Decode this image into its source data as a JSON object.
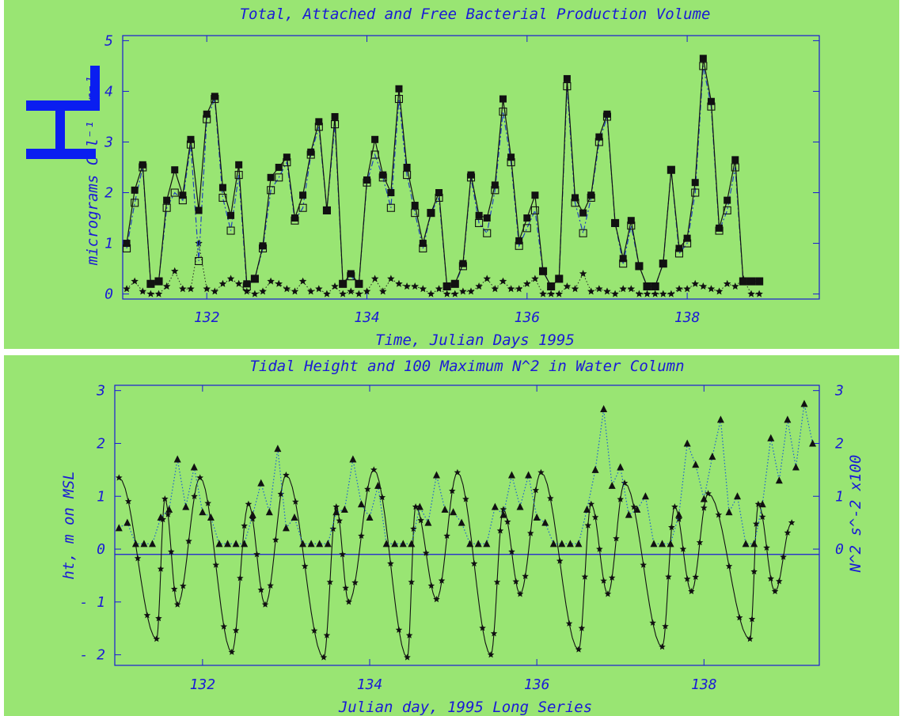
{
  "chart_data": [
    {
      "type": "line",
      "title": "Total, Attached and Free Bacterial Production Volume",
      "xlabel": "Time, Julian Days 1995",
      "ylabel": "micrograms C l⁻¹ hr⁻¹",
      "xlim": [
        130.95,
        139.65
      ],
      "ylim": [
        -0.1,
        5.1
      ],
      "xticks": [
        132,
        134,
        136,
        138
      ],
      "yticks": [
        0,
        1,
        2,
        3,
        4,
        5
      ],
      "grid": false,
      "series": [
        {
          "style": "filled-square-solid",
          "x": [
            131.0,
            131.1,
            131.2,
            131.3,
            131.4,
            131.5,
            131.6,
            131.7,
            131.8,
            131.9,
            132.0,
            132.1,
            132.2,
            132.3,
            132.4,
            132.5,
            132.6,
            132.7,
            132.8,
            132.9,
            133.0,
            133.1,
            133.2,
            133.3,
            133.4,
            133.5,
            133.6,
            133.7,
            133.8,
            133.9,
            134.0,
            134.1,
            134.2,
            134.3,
            134.4,
            134.5,
            134.6,
            134.7,
            134.8,
            134.9,
            135.0,
            135.1,
            135.2,
            135.3,
            135.4,
            135.5,
            135.6,
            135.7,
            135.8,
            135.9,
            136.0,
            136.1,
            136.2,
            136.3,
            136.4,
            136.5,
            136.6,
            136.7,
            136.8,
            136.9,
            137.0,
            137.1,
            137.2,
            137.3,
            137.4,
            137.5,
            137.6,
            137.7,
            137.8,
            137.9,
            138.0,
            138.1,
            138.2,
            138.3,
            138.4,
            138.5,
            138.6,
            138.7,
            138.8,
            138.9
          ],
          "y": [
            1.0,
            2.05,
            2.55,
            0.2,
            0.25,
            1.85,
            2.45,
            1.95,
            3.05,
            1.65,
            3.55,
            3.9,
            2.1,
            1.55,
            2.55,
            0.2,
            0.3,
            0.95,
            2.3,
            2.5,
            2.7,
            1.5,
            1.95,
            2.8,
            3.4,
            1.65,
            3.5,
            0.2,
            0.4,
            0.2,
            2.25,
            3.05,
            2.35,
            2.0,
            4.05,
            2.5,
            1.75,
            1.0,
            1.6,
            2.0,
            0.15,
            0.2,
            0.6,
            2.35,
            1.55,
            1.5,
            2.15,
            3.85,
            2.7,
            1.05,
            1.5,
            1.95,
            0.45,
            0.15,
            0.3,
            4.25,
            1.9,
            1.6,
            1.95,
            3.1,
            3.55,
            1.4,
            0.7,
            1.45,
            0.55,
            0.15,
            0.15,
            0.6,
            2.45,
            0.9,
            1.1,
            2.2,
            4.65,
            3.8,
            1.3,
            1.85,
            2.65,
            0.25,
            0.25,
            0.25
          ]
        },
        {
          "style": "open-square-dashdot",
          "x": [
            131.0,
            131.1,
            131.2,
            131.3,
            131.4,
            131.5,
            131.6,
            131.7,
            131.8,
            131.9,
            132.0,
            132.1,
            132.2,
            132.3,
            132.4,
            132.5,
            132.6,
            132.7,
            132.8,
            132.9,
            133.0,
            133.1,
            133.2,
            133.3,
            133.4,
            133.5,
            133.6,
            133.7,
            133.8,
            133.9,
            134.0,
            134.1,
            134.2,
            134.3,
            134.4,
            134.5,
            134.6,
            134.7,
            134.8,
            134.9,
            135.0,
            135.1,
            135.2,
            135.3,
            135.4,
            135.5,
            135.6,
            135.7,
            135.8,
            135.9,
            136.0,
            136.1,
            136.2,
            136.3,
            136.4,
            136.5,
            136.6,
            136.7,
            136.8,
            136.9,
            137.0,
            137.1,
            137.2,
            137.3,
            137.4,
            137.5,
            137.6,
            137.7,
            137.8,
            137.9,
            138.0,
            138.1,
            138.2,
            138.3,
            138.4,
            138.5,
            138.6,
            138.7,
            138.8,
            138.9
          ],
          "y": [
            0.9,
            1.8,
            2.5,
            0.2,
            0.25,
            1.7,
            2.0,
            1.85,
            2.95,
            0.65,
            3.45,
            3.85,
            1.9,
            1.25,
            2.35,
            0.15,
            0.3,
            0.9,
            2.05,
            2.3,
            2.6,
            1.45,
            1.7,
            2.75,
            3.3,
            1.65,
            3.35,
            0.2,
            0.35,
            0.2,
            2.2,
            2.75,
            2.3,
            1.7,
            3.85,
            2.35,
            1.6,
            0.9,
            1.6,
            1.9,
            0.15,
            0.2,
            0.55,
            2.3,
            1.4,
            1.2,
            2.05,
            3.6,
            2.6,
            0.95,
            1.3,
            1.65,
            0.45,
            0.15,
            0.3,
            4.1,
            1.8,
            1.2,
            1.9,
            3.0,
            3.5,
            1.4,
            0.6,
            1.35,
            0.55,
            0.15,
            0.15,
            0.6,
            2.45,
            0.8,
            1.0,
            2.0,
            4.5,
            3.7,
            1.25,
            1.65,
            2.5,
            0.25,
            0.25,
            0.25
          ]
        },
        {
          "style": "star-dotted",
          "x": [
            131.0,
            131.1,
            131.2,
            131.3,
            131.4,
            131.5,
            131.6,
            131.7,
            131.8,
            131.9,
            132.0,
            132.1,
            132.2,
            132.3,
            132.4,
            132.5,
            132.6,
            132.7,
            132.8,
            132.9,
            133.0,
            133.1,
            133.2,
            133.3,
            133.4,
            133.5,
            133.6,
            133.7,
            133.8,
            133.9,
            134.0,
            134.1,
            134.2,
            134.3,
            134.4,
            134.5,
            134.6,
            134.7,
            134.8,
            134.9,
            135.0,
            135.1,
            135.2,
            135.3,
            135.4,
            135.5,
            135.6,
            135.7,
            135.8,
            135.9,
            136.0,
            136.1,
            136.2,
            136.3,
            136.4,
            136.5,
            136.6,
            136.7,
            136.8,
            136.9,
            137.0,
            137.1,
            137.2,
            137.3,
            137.4,
            137.5,
            137.6,
            137.7,
            137.8,
            137.9,
            138.0,
            138.1,
            138.2,
            138.3,
            138.4,
            138.5,
            138.6,
            138.7,
            138.8,
            138.9
          ],
          "y": [
            0.1,
            0.25,
            0.05,
            0.0,
            0.0,
            0.15,
            0.45,
            0.1,
            0.1,
            1.0,
            0.1,
            0.05,
            0.2,
            0.3,
            0.2,
            0.05,
            0.0,
            0.05,
            0.25,
            0.2,
            0.1,
            0.05,
            0.25,
            0.05,
            0.1,
            0.0,
            0.15,
            0.0,
            0.05,
            0.0,
            0.05,
            0.3,
            0.05,
            0.3,
            0.2,
            0.15,
            0.15,
            0.1,
            0.0,
            0.1,
            0.0,
            0.0,
            0.05,
            0.05,
            0.15,
            0.3,
            0.1,
            0.25,
            0.1,
            0.1,
            0.2,
            0.3,
            0.0,
            0.0,
            0.0,
            0.15,
            0.1,
            0.4,
            0.05,
            0.1,
            0.05,
            0.0,
            0.1,
            0.1,
            0.0,
            0.0,
            0.0,
            0.0,
            0.0,
            0.1,
            0.1,
            0.2,
            0.15,
            0.1,
            0.05,
            0.2,
            0.15,
            0.3,
            0.0,
            0.0
          ]
        }
      ]
    },
    {
      "type": "line",
      "title": "Tidal Height and 100 Maximum N^2 in Water Column",
      "xlabel": "Julian day, 1995 Long Series",
      "ylabel_left": "ht, m on MSL",
      "ylabel_right": "N^2 s^-2 x100",
      "xlim": [
        130.95,
        139.38
      ],
      "ylim": [
        -2.2,
        3.1
      ],
      "xticks": [
        132,
        134,
        136,
        138
      ],
      "yticks_left": [
        -2,
        -1,
        0,
        1,
        2,
        3
      ],
      "ytick_labels_left": [
        "- 2",
        "- 1",
        "0",
        "1",
        "2",
        "3"
      ],
      "yticks_right": [
        0,
        1,
        2,
        3
      ],
      "reference_line": -0.1,
      "series": [
        {
          "style": "star-solid",
          "axis": "left",
          "mean": -0.2,
          "amplitude_peaks": [
            1.35,
            1.2,
            1.55,
            1.6,
            1.9,
            1.8,
            1.75,
            1.65,
            1.75,
            1.7,
            1.8,
            1.8,
            1.85,
            1.65,
            1.6,
            1.7,
            1.45,
            1.6
          ],
          "period_days": 1.035,
          "peak_x": [
            131.0,
            131.97,
            133.0,
            134.05,
            135.05,
            136.05,
            137.05,
            138.05,
            139.05
          ],
          "peak_y": [
            1.35,
            1.35,
            1.4,
            1.5,
            1.45,
            1.45,
            1.25,
            1.05,
            0.5
          ],
          "trough_x": [
            131.45,
            132.35,
            133.45,
            134.45,
            135.45,
            136.5,
            137.5,
            138.55
          ],
          "trough_y": [
            -1.7,
            -1.95,
            -2.05,
            -2.05,
            -2.0,
            -1.9,
            -1.85,
            -1.7
          ],
          "secondary_peak_x": [
            131.55,
            132.55,
            133.6,
            134.55,
            135.6,
            136.65,
            137.65,
            138.65
          ],
          "secondary_peak_y": [
            0.95,
            0.85,
            0.8,
            0.8,
            0.75,
            0.85,
            0.8,
            0.85
          ],
          "secondary_trough_x": [
            131.7,
            132.75,
            133.75,
            134.8,
            135.8,
            136.85,
            137.85,
            138.85
          ],
          "secondary_trough_y": [
            -1.05,
            -1.05,
            -1.0,
            -0.95,
            -0.85,
            -0.85,
            -0.8,
            -0.8
          ]
        },
        {
          "style": "triangle-dotted",
          "axis": "right",
          "x": [
            131.0,
            131.1,
            131.2,
            131.3,
            131.4,
            131.5,
            131.6,
            131.7,
            131.8,
            131.9,
            132.0,
            132.1,
            132.2,
            132.3,
            132.4,
            132.5,
            132.6,
            132.7,
            132.8,
            132.9,
            133.0,
            133.1,
            133.2,
            133.3,
            133.4,
            133.5,
            133.6,
            133.7,
            133.8,
            133.9,
            134.0,
            134.1,
            134.2,
            134.3,
            134.4,
            134.5,
            134.6,
            134.7,
            134.8,
            134.9,
            135.0,
            135.1,
            135.2,
            135.3,
            135.4,
            135.5,
            135.6,
            135.7,
            135.8,
            135.9,
            136.0,
            136.1,
            136.2,
            136.3,
            136.4,
            136.5,
            136.6,
            136.7,
            136.8,
            136.9,
            137.0,
            137.1,
            137.2,
            137.3,
            137.4,
            137.5,
            137.6,
            137.7,
            137.8,
            137.9,
            138.0,
            138.1,
            138.2,
            138.3,
            138.4,
            138.5,
            138.6,
            138.7,
            138.8,
            138.9,
            139.0,
            139.1,
            139.2,
            139.3
          ],
          "y": [
            0.4,
            0.5,
            0.1,
            0.1,
            0.1,
            0.6,
            0.75,
            1.7,
            0.8,
            1.55,
            0.7,
            0.6,
            0.1,
            0.1,
            0.1,
            0.1,
            0.65,
            1.25,
            0.7,
            1.9,
            0.4,
            0.6,
            0.1,
            0.1,
            0.1,
            0.1,
            0.7,
            0.75,
            1.7,
            0.85,
            0.6,
            1.2,
            0.1,
            0.1,
            0.1,
            0.1,
            0.8,
            0.5,
            1.4,
            0.75,
            0.7,
            0.5,
            0.1,
            0.1,
            0.1,
            0.8,
            0.65,
            1.4,
            0.8,
            1.4,
            0.6,
            0.5,
            0.1,
            0.1,
            0.1,
            0.1,
            0.75,
            1.5,
            2.65,
            1.2,
            1.55,
            0.65,
            0.75,
            1.0,
            0.1,
            0.1,
            0.1,
            0.65,
            2.0,
            1.6,
            0.95,
            1.75,
            2.45,
            0.7,
            1.0,
            0.1,
            0.1,
            0.85,
            2.1,
            1.3,
            2.45,
            1.55,
            2.75,
            2.0
          ]
        }
      ]
    }
  ]
}
